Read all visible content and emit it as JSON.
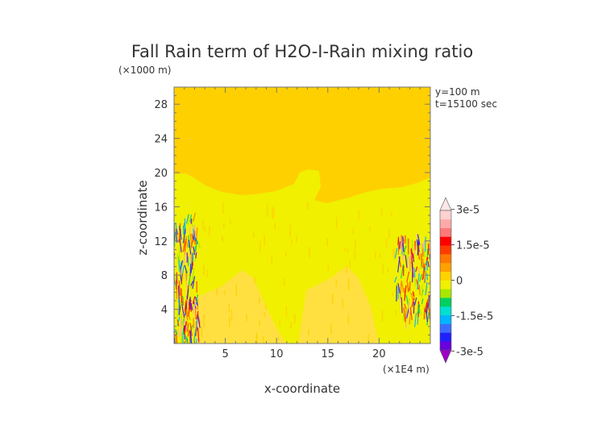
{
  "chart_data": {
    "type": "heatmap",
    "title": "Fall Rain term of H2O-I-Rain mixing ratio",
    "xlabel": "x-coordinate",
    "ylabel": "z-coordinate",
    "x_unit": "(×1E4 m)",
    "y_unit": "(×1000 m)",
    "annotations": [
      "y=100 m",
      "t=15100 sec"
    ],
    "xlim": [
      0,
      25
    ],
    "ylim": [
      0,
      30
    ],
    "x_ticks": [
      5,
      10,
      15,
      20
    ],
    "y_ticks": [
      4,
      8,
      12,
      16,
      20,
      24,
      28
    ],
    "colorbar": {
      "min": -3.5e-05,
      "max": 3.5e-05,
      "tick_values": [
        3e-05,
        1.5e-05,
        0,
        -1.5e-05,
        -3e-05
      ],
      "tick_labels": [
        "3e-5",
        "1.5e-5",
        "0",
        "-1.5e-5",
        "-3e-5"
      ],
      "colors": [
        "#9e00c8",
        "#6a00e0",
        "#2020ff",
        "#3c6cff",
        "#00b4ff",
        "#00e0d0",
        "#00d060",
        "#a8e800",
        "#f0f000",
        "#ffd200",
        "#ffa000",
        "#ff7800",
        "#ff3c00",
        "#ff0000",
        "#ff7878",
        "#ffaaaa",
        "#ffd2d2",
        "#ffe6e6"
      ]
    },
    "background_color": "#ffd000",
    "near_zero_color": "#f0f000",
    "grid": false,
    "legend_position": "right"
  }
}
